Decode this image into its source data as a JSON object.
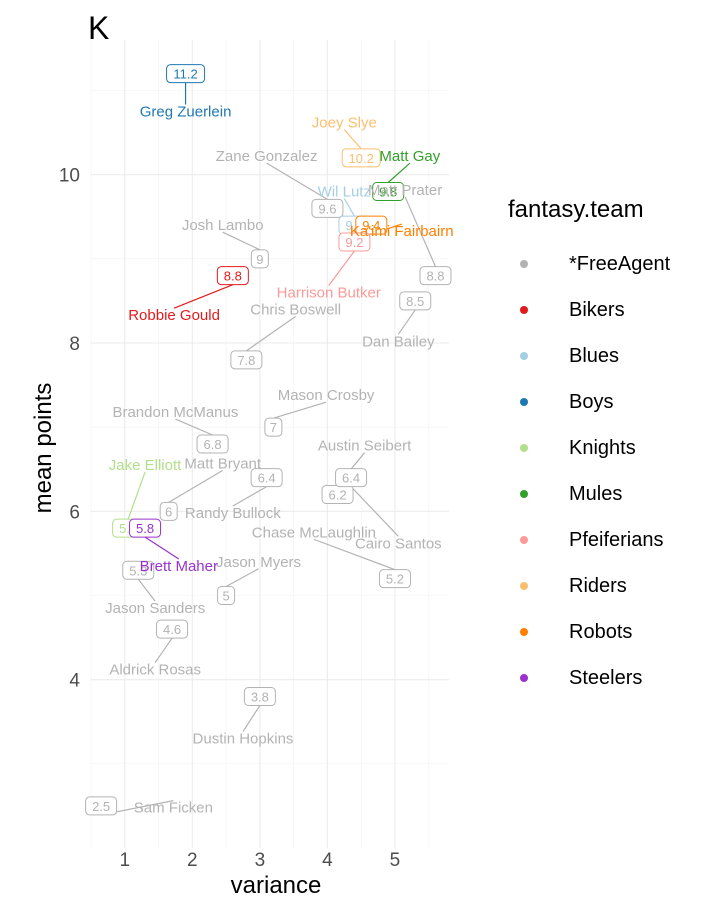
{
  "page": {
    "title": "K",
    "xlabel": "variance",
    "ylabel": "mean points",
    "legend_title": "fantasy.team"
  },
  "legend": [
    {
      "name": "*FreeAgent",
      "color": "#b3b3b3"
    },
    {
      "name": "Bikers",
      "color": "#e31a1c"
    },
    {
      "name": "Blues",
      "color": "#a6cee3"
    },
    {
      "name": "Boys",
      "color": "#1f78b4"
    },
    {
      "name": "Knights",
      "color": "#b2df8a"
    },
    {
      "name": "Mules",
      "color": "#33a02c"
    },
    {
      "name": "Pfeiferians",
      "color": "#fb9a99"
    },
    {
      "name": "Riders",
      "color": "#fdbf6f"
    },
    {
      "name": "Robots",
      "color": "#ff7f00"
    },
    {
      "name": "Steelers",
      "color": "#9a32cd"
    }
  ],
  "chart_data": {
    "type": "scatter",
    "title": "K",
    "xlabel": "variance",
    "ylabel": "mean points",
    "xlim": [
      0.5,
      5.8
    ],
    "ylim": [
      2.0,
      11.6
    ],
    "x_ticks": [
      1,
      2,
      3,
      4,
      5
    ],
    "y_ticks": [
      4,
      6,
      8,
      10
    ],
    "grid": true,
    "legend_position": "right",
    "points": [
      {
        "player": "Greg Zuerlein",
        "team": "Boys",
        "x": 1.9,
        "y": 11.2,
        "value": "11.2",
        "lx": 1.9,
        "ly": 10.75
      },
      {
        "player": "Joey Slye",
        "team": "Riders",
        "x": 4.5,
        "y": 10.2,
        "value": "10.2",
        "lx": 4.25,
        "ly": 10.62
      },
      {
        "player": "Matt Gay",
        "team": "Mules",
        "x": 4.9,
        "y": 9.8,
        "value": "9.8",
        "lx": 5.22,
        "ly": 10.22
      },
      {
        "player": "Zane Gonzalez",
        "team": "*FreeAgent",
        "x": 4.0,
        "y": 9.6,
        "value": "9.6",
        "lx": 3.1,
        "ly": 10.22
      },
      {
        "player": "Wil Lutz",
        "team": "Blues",
        "x": 4.4,
        "y": 9.4,
        "value": "9.4",
        "lx": 4.25,
        "ly": 9.8
      },
      {
        "player": "Ka'imi Fairbairn",
        "team": "Robots",
        "x": 4.65,
        "y": 9.4,
        "value": "9.4",
        "lx": 5.1,
        "ly": 9.33
      },
      {
        "player": "Josh Lambo",
        "team": "*FreeAgent",
        "x": 3.0,
        "y": 9.0,
        "value": "9",
        "lx": 2.45,
        "ly": 9.4
      },
      {
        "player": "Harrison Butker",
        "team": "Pfeiferians",
        "x": 4.4,
        "y": 9.2,
        "value": "9.2",
        "lx": 4.02,
        "ly": 8.6
      },
      {
        "player": "Matt Prater",
        "team": "*FreeAgent",
        "x": 5.6,
        "y": 8.8,
        "value": "8.8",
        "lx": 5.15,
        "ly": 9.82
      },
      {
        "player": "Robbie Gould",
        "team": "Bikers",
        "x": 2.6,
        "y": 8.8,
        "value": "8.8",
        "lx": 1.73,
        "ly": 8.33
      },
      {
        "player": "Dan Bailey",
        "team": "*FreeAgent",
        "x": 5.3,
        "y": 8.5,
        "value": "8.5",
        "lx": 5.05,
        "ly": 8.02
      },
      {
        "player": "Chris Boswell",
        "team": "*FreeAgent",
        "x": 2.8,
        "y": 7.8,
        "value": "7.8",
        "lx": 3.53,
        "ly": 8.4
      },
      {
        "player": "Mason Crosby",
        "team": "*FreeAgent",
        "x": 3.2,
        "y": 7.0,
        "value": "7",
        "lx": 3.98,
        "ly": 7.38
      },
      {
        "player": "Brandon McManus",
        "team": "*FreeAgent",
        "x": 2.3,
        "y": 6.8,
        "value": "6.8",
        "lx": 1.75,
        "ly": 7.18
      },
      {
        "player": "Austin Seibert",
        "team": "*FreeAgent",
        "x": 4.15,
        "y": 6.2,
        "value": "6.2",
        "lx": 4.55,
        "ly": 6.78
      },
      {
        "player": "Cairo Santos",
        "team": "*FreeAgent",
        "x": 4.35,
        "y": 6.4,
        "value": "6.4",
        "lx": 5.05,
        "ly": 5.62
      },
      {
        "player": "Randy Bullock",
        "team": "*FreeAgent",
        "x": 3.1,
        "y": 6.4,
        "value": "6.4",
        "lx": 2.6,
        "ly": 5.98
      },
      {
        "player": "Matt Bryant",
        "team": "*FreeAgent",
        "x": 1.65,
        "y": 6.0,
        "value": "6",
        "lx": 2.45,
        "ly": 6.57
      },
      {
        "player": "Jake Elliott",
        "team": "Knights",
        "x": 1.05,
        "y": 5.8,
        "value": "5.8",
        "lx": 1.3,
        "ly": 6.55
      },
      {
        "player": "Brett Maher",
        "team": "Steelers",
        "x": 1.3,
        "y": 5.8,
        "value": "5.8",
        "lx": 1.8,
        "ly": 5.35
      },
      {
        "player": "Jason Myers",
        "team": "*FreeAgent",
        "x": 2.5,
        "y": 5.0,
        "value": "5",
        "lx": 2.98,
        "ly": 5.4
      },
      {
        "player": "Chase McLaughlin",
        "team": "*FreeAgent",
        "x": 5.0,
        "y": 5.2,
        "value": "5.2",
        "lx": 3.8,
        "ly": 5.75
      },
      {
        "player": "Jason Sanders",
        "team": "*FreeAgent",
        "x": 1.2,
        "y": 5.3,
        "value": "5.3",
        "lx": 1.45,
        "ly": 4.85
      },
      {
        "player": "Aldrick Rosas",
        "team": "*FreeAgent",
        "x": 1.7,
        "y": 4.6,
        "value": "4.6",
        "lx": 1.45,
        "ly": 4.12
      },
      {
        "player": "Dustin Hopkins",
        "team": "*FreeAgent",
        "x": 3.0,
        "y": 3.8,
        "value": "3.8",
        "lx": 2.75,
        "ly": 3.3
      },
      {
        "player": "Sam Ficken",
        "team": "*FreeAgent",
        "x": 0.65,
        "y": 2.5,
        "value": "2.5",
        "lx": 1.72,
        "ly": 2.48
      }
    ]
  }
}
